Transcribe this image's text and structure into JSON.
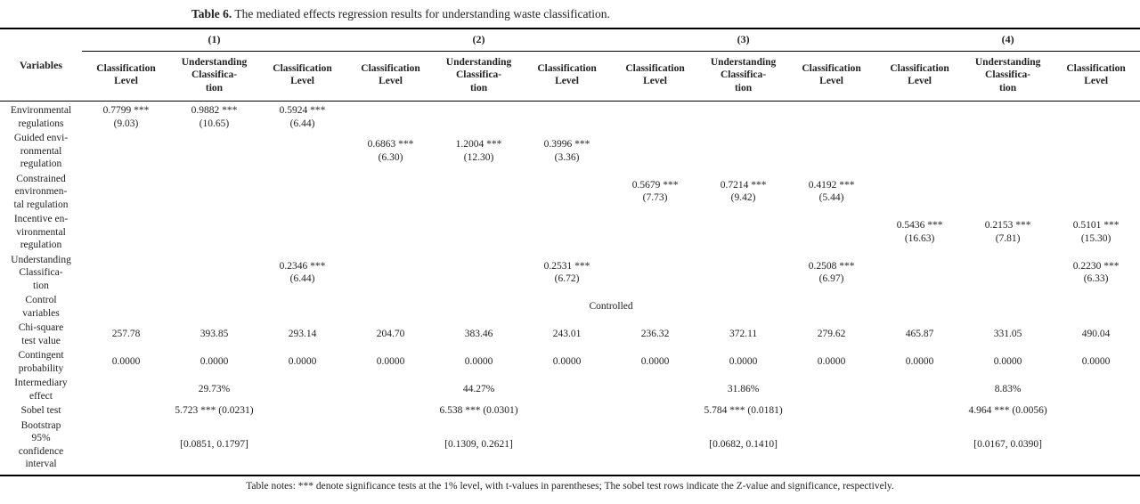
{
  "title": {
    "label": "Table 6.",
    "text": "The mediated effects regression results for understanding waste classification."
  },
  "table": {
    "variables_header": "Variables",
    "groups": [
      "(1)",
      "(2)",
      "(3)",
      "(4)"
    ],
    "subheaders": [
      "Classification\nLevel",
      "Understanding\nClassifica-\ntion",
      "Classification\nLevel",
      "Classification\nLevel",
      "Understanding\nClassifica-\ntion",
      "Classification\nLevel",
      "Classification\nLevel",
      "Understanding\nClassifica-\ntion",
      "Classification\nLevel",
      "Classification\nLevel",
      "Understanding\nClassifica-\ntion",
      "Classification\nLevel"
    ],
    "rows": [
      {
        "label": "Environmental\nregulations",
        "type": "cols",
        "cells": [
          "0.7799 ***\n(9.03)",
          "0.9882 ***\n(10.65)",
          "0.5924 ***\n(6.44)",
          "",
          "",
          "",
          "",
          "",
          "",
          "",
          "",
          ""
        ]
      },
      {
        "label": "Guided envi-\nronmental\nregulation",
        "type": "cols",
        "cells": [
          "",
          "",
          "",
          "0.6863 ***\n(6.30)",
          "1.2004 ***\n(12.30)",
          "0.3996 ***\n(3.36)",
          "",
          "",
          "",
          "",
          "",
          ""
        ]
      },
      {
        "label": "Constrained\nenvironmen-\ntal regulation",
        "type": "cols",
        "cells": [
          "",
          "",
          "",
          "",
          "",
          "",
          "0.5679 ***\n(7.73)",
          "0.7214 ***\n(9.42)",
          "0.4192 ***\n(5.44)",
          "",
          "",
          ""
        ]
      },
      {
        "label": "Incentive en-\nvironmental\nregulation",
        "type": "cols",
        "cells": [
          "",
          "",
          "",
          "",
          "",
          "",
          "",
          "",
          "",
          "0.5436 ***\n(16.63)",
          "0.2153 ***\n(7.81)",
          "0.5101 ***\n(15.30)"
        ]
      },
      {
        "label": "Understanding\nClassifica-\ntion",
        "type": "cols",
        "cells": [
          "",
          "",
          "0.2346 ***\n(6.44)",
          "",
          "",
          "0.2531 ***\n(6.72)",
          "",
          "",
          "0.2508 ***\n(6.97)",
          "",
          "",
          "0.2230 ***\n(6.33)"
        ]
      },
      {
        "label": "Control\nvariables",
        "type": "span12",
        "cells": [
          "Controlled"
        ]
      },
      {
        "label": "Chi-square\ntest value",
        "type": "cols",
        "cells": [
          "257.78",
          "393.85",
          "293.14",
          "204.70",
          "383.46",
          "243.01",
          "236.32",
          "372.11",
          "279.62",
          "465.87",
          "331.05",
          "490.04"
        ]
      },
      {
        "label": "Contingent\nprobability",
        "type": "cols",
        "cells": [
          "0.0000",
          "0.0000",
          "0.0000",
          "0.0000",
          "0.0000",
          "0.0000",
          "0.0000",
          "0.0000",
          "0.0000",
          "0.0000",
          "0.0000",
          "0.0000"
        ]
      },
      {
        "label": "Intermediary\neffect",
        "type": "span3",
        "cells": [
          "29.73%",
          "44.27%",
          "31.86%",
          "8.83%"
        ]
      },
      {
        "label": "Sobel test",
        "type": "span3",
        "cells": [
          "5.723 *** (0.0231)",
          "6.538 *** (0.0301)",
          "5.784 *** (0.0181)",
          "4.964 *** (0.0056)"
        ]
      },
      {
        "label": "Bootstrap\n95%\nconfidence\ninterval",
        "type": "span3",
        "cells": [
          "[0.0851, 0.1797]",
          "[0.1309, 0.2621]",
          "[0.0682, 0.1410]",
          "[0.0167, 0.0390]"
        ]
      }
    ]
  },
  "notes": "Table notes: *** denote significance tests at the 1% level, with t-values in parentheses; The sobel test rows indicate the Z-value and significance, respectively."
}
